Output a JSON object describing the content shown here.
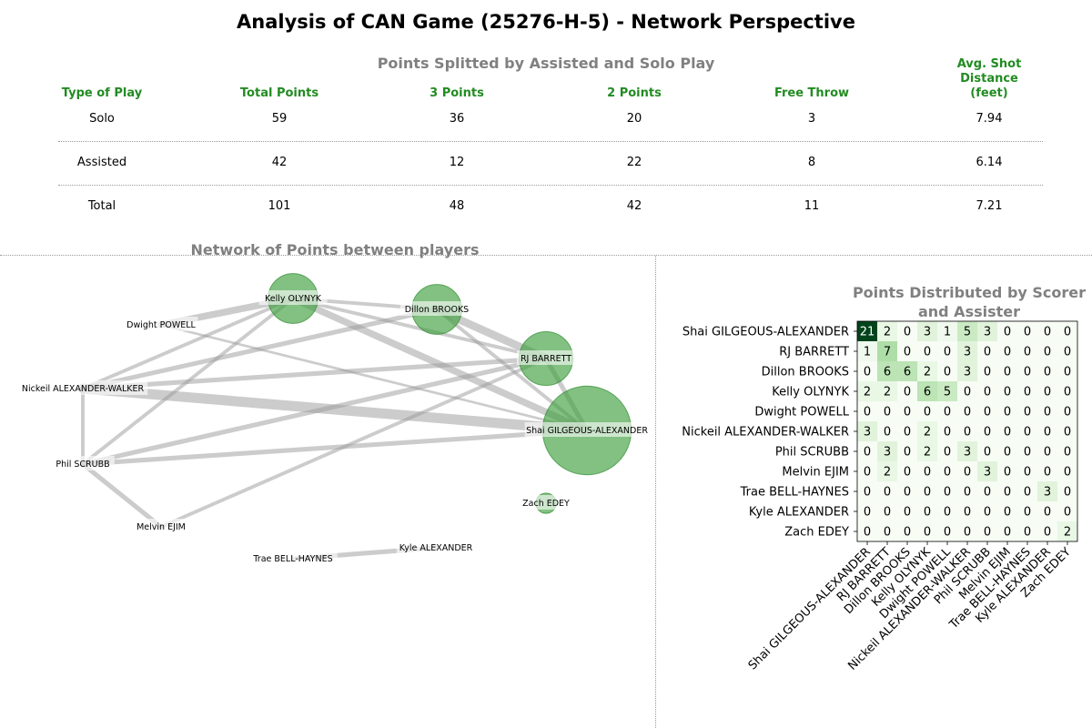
{
  "title": "Analysis of CAN Game (25276-H-5) - Network Perspective",
  "table": {
    "title": "Points Splitted by Assisted and Solo Play",
    "headers": [
      "Type of Play",
      "Total Points",
      "3 Points",
      "2 Points",
      "Free Throw",
      "Avg. Shot\nDistance\n(feet)"
    ],
    "header_lines": {
      "avg": [
        "Avg. Shot",
        "Distance",
        "(feet)"
      ]
    },
    "rows": [
      {
        "type": "Solo",
        "total": "59",
        "three": "36",
        "two": "20",
        "ft": "3",
        "dist": "7.94"
      },
      {
        "type": "Assisted",
        "total": "42",
        "three": "12",
        "two": "22",
        "ft": "8",
        "dist": "6.14"
      },
      {
        "type": "Total",
        "total": "101",
        "three": "48",
        "two": "42",
        "ft": "11",
        "dist": "7.21"
      }
    ]
  },
  "chart_data": [
    {
      "type": "network",
      "title": "Network of Points between players",
      "nodes": [
        {
          "name": "Kelly OLYNYK",
          "points": 12
        },
        {
          "name": "Dillon BROOKS",
          "points": 12
        },
        {
          "name": "Dwight POWELL",
          "points": 0
        },
        {
          "name": "RJ BARRETT",
          "points": 14
        },
        {
          "name": "Nickeil ALEXANDER-WALKER",
          "points": 0
        },
        {
          "name": "Shai GILGEOUS-ALEXANDER",
          "points": 38
        },
        {
          "name": "Phil SCRUBB",
          "points": 0
        },
        {
          "name": "Zach EDEY",
          "points": 2
        },
        {
          "name": "Melvin EJIM",
          "points": 0
        },
        {
          "name": "Trae BELL-HAYNES",
          "points": 0
        },
        {
          "name": "Kyle ALEXANDER",
          "points": 0
        }
      ],
      "edges": [
        {
          "source": "Kelly OLYNYK",
          "target": "Dwight POWELL",
          "value": 5
        },
        {
          "source": "Kelly OLYNYK",
          "target": "Dillon BROOKS",
          "value": 2
        },
        {
          "source": "Kelly OLYNYK",
          "target": "RJ BARRETT",
          "value": 2
        },
        {
          "source": "Kelly OLYNYK",
          "target": "Shai GILGEOUS-ALEXANDER",
          "value": 5
        },
        {
          "source": "Kelly OLYNYK",
          "target": "Nickeil ALEXANDER-WALKER",
          "value": 2
        },
        {
          "source": "Kelly OLYNYK",
          "target": "Phil SCRUBB",
          "value": 2
        },
        {
          "source": "Dillon BROOKS",
          "target": "RJ BARRETT",
          "value": 6
        },
        {
          "source": "Dillon BROOKS",
          "target": "Nickeil ALEXANDER-WALKER",
          "value": 3
        },
        {
          "source": "Dillon BROOKS",
          "target": "Shai GILGEOUS-ALEXANDER",
          "value": 2
        },
        {
          "source": "Dwight POWELL",
          "target": "Shai GILGEOUS-ALEXANDER",
          "value": 1
        },
        {
          "source": "RJ BARRETT",
          "target": "Nickeil ALEXANDER-WALKER",
          "value": 3
        },
        {
          "source": "RJ BARRETT",
          "target": "Phil SCRUBB",
          "value": 3
        },
        {
          "source": "RJ BARRETT",
          "target": "Melvin EJIM",
          "value": 2
        },
        {
          "source": "RJ BARRETT",
          "target": "Shai GILGEOUS-ALEXANDER",
          "value": 3
        },
        {
          "source": "Nickeil ALEXANDER-WALKER",
          "target": "Shai GILGEOUS-ALEXANDER",
          "value": 8
        },
        {
          "source": "Nickeil ALEXANDER-WALKER",
          "target": "Phil SCRUBB",
          "value": 2
        },
        {
          "source": "Phil SCRUBB",
          "target": "Shai GILGEOUS-ALEXANDER",
          "value": 3
        },
        {
          "source": "Phil SCRUBB",
          "target": "Melvin EJIM",
          "value": 3
        },
        {
          "source": "Trae BELL-HAYNES",
          "target": "Kyle ALEXANDER",
          "value": 3
        }
      ]
    },
    {
      "type": "heatmap",
      "title": "Points Distributed by Scorer\nand Assister",
      "title_lines": [
        "Points Distributed by Scorer",
        "and Assister"
      ],
      "rows": [
        "Shai GILGEOUS-ALEXANDER",
        "RJ BARRETT",
        "Dillon BROOKS",
        "Kelly OLYNYK",
        "Dwight POWELL",
        "Nickeil ALEXANDER-WALKER",
        "Phil SCRUBB",
        "Melvin EJIM",
        "Trae BELL-HAYNES",
        "Kyle ALEXANDER",
        "Zach EDEY"
      ],
      "columns": [
        "Shai GILGEOUS-ALEXANDER",
        "RJ BARRETT",
        "Dillon BROOKS",
        "Kelly OLYNYK",
        "Dwight POWELL",
        "Nickeil ALEXANDER-WALKER",
        "Phil SCRUBB",
        "Melvin EJIM",
        "Trae BELL-HAYNES",
        "Kyle ALEXANDER",
        "Zach EDEY"
      ],
      "values": [
        [
          21,
          2,
          0,
          3,
          1,
          5,
          3,
          0,
          0,
          0,
          0
        ],
        [
          1,
          7,
          0,
          0,
          0,
          3,
          0,
          0,
          0,
          0,
          0
        ],
        [
          0,
          6,
          6,
          2,
          0,
          3,
          0,
          0,
          0,
          0,
          0
        ],
        [
          2,
          2,
          0,
          6,
          5,
          0,
          0,
          0,
          0,
          0,
          0
        ],
        [
          0,
          0,
          0,
          0,
          0,
          0,
          0,
          0,
          0,
          0,
          0
        ],
        [
          3,
          0,
          0,
          2,
          0,
          0,
          0,
          0,
          0,
          0,
          0
        ],
        [
          0,
          3,
          0,
          2,
          0,
          3,
          0,
          0,
          0,
          0,
          0
        ],
        [
          0,
          2,
          0,
          0,
          0,
          0,
          3,
          0,
          0,
          0,
          0
        ],
        [
          0,
          0,
          0,
          0,
          0,
          0,
          0,
          0,
          0,
          3,
          0
        ],
        [
          0,
          0,
          0,
          0,
          0,
          0,
          0,
          0,
          0,
          0,
          0
        ],
        [
          0,
          0,
          0,
          0,
          0,
          0,
          0,
          0,
          0,
          0,
          2
        ]
      ],
      "colormap": "Greens"
    }
  ]
}
